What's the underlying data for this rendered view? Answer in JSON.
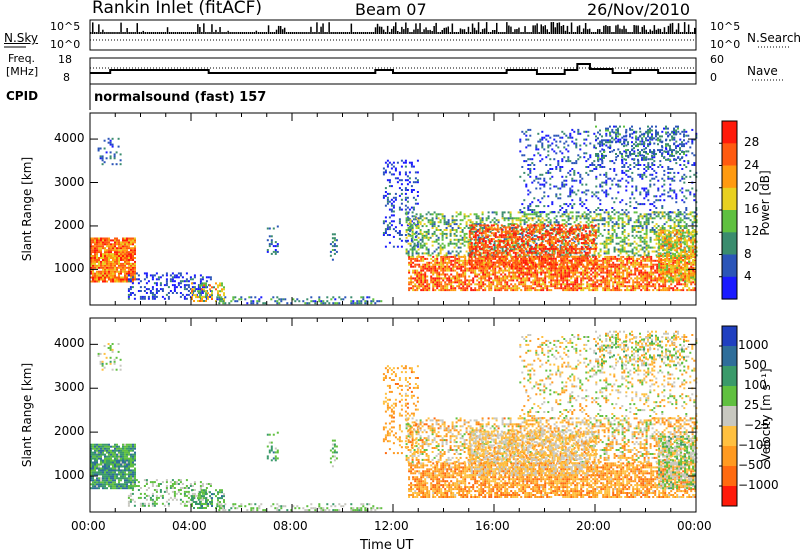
{
  "header": {
    "title": "Rankin Inlet (fitACF)",
    "beam": "Beam 07",
    "date": "26/Nov/2010"
  },
  "panels": {
    "nsky": {
      "label": "N.Sky",
      "ticks_left": [
        "10^5",
        "10^0"
      ],
      "ticks_right": [
        "10^5",
        "10^0"
      ],
      "right_label": "N.Search"
    },
    "freq": {
      "label_line1": "Freq.",
      "label_line2": "[MHz]",
      "ticks_left": [
        "18",
        "8"
      ],
      "ticks_right": [
        "60",
        "0"
      ],
      "right_label": "Nave"
    },
    "cpid": {
      "label": "CPID",
      "value": "normalsound (fast) 157"
    }
  },
  "chart_data": [
    {
      "type": "heatmap",
      "name": "power",
      "ylabel": "Slant Range [km]",
      "ylim": [
        180,
        4600
      ],
      "yticks": [
        1000,
        2000,
        3000,
        4000
      ],
      "xlim": [
        "00:00",
        "24:00"
      ],
      "colorbar": {
        "label": "Power [dB]",
        "ticks": [
          "4",
          "8",
          "12",
          "16",
          "20",
          "24",
          "28"
        ],
        "colors": [
          "#1a1aff",
          "#2b55b8",
          "#3a8c6e",
          "#5fc040",
          "#e8d020",
          "#ff9a10",
          "#ff5a10",
          "#ff1a0a"
        ]
      }
    },
    {
      "type": "heatmap",
      "name": "velocity",
      "ylabel": "Slant Range [km]",
      "ylim": [
        180,
        4600
      ],
      "yticks": [
        1000,
        2000,
        3000,
        4000
      ],
      "xlim": [
        "00:00",
        "24:00"
      ],
      "colorbar": {
        "label": "Velocity [m s⁻¹]",
        "ticks": [
          "1000",
          "500",
          "100",
          "25",
          "−25",
          "−100",
          "−500",
          "−1000"
        ],
        "colors": [
          "#2040c0",
          "#2f6e9a",
          "#3a9a6a",
          "#60c040",
          "#c8c8c0",
          "#ffc040",
          "#ff9a20",
          "#ff6a10",
          "#ff1a0a"
        ]
      }
    }
  ],
  "xaxis": {
    "ticks": [
      "00:00",
      "04:00",
      "08:00",
      "12:00",
      "16:00",
      "20:00",
      "00:00"
    ],
    "label": "Time UT"
  }
}
